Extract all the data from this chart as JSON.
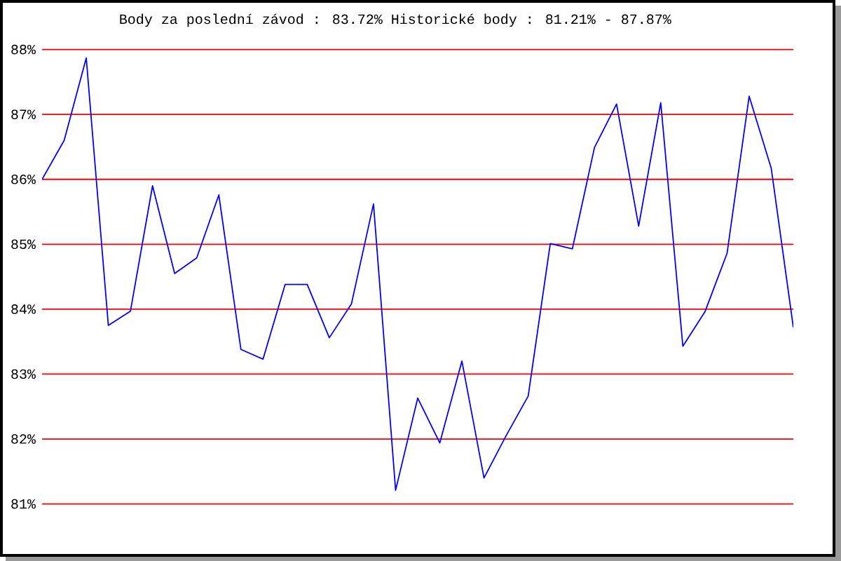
{
  "chart_data": {
    "type": "line",
    "title": "Body za poslední závod : 83.72% Historické body : 81.21% - 87.87%",
    "categories": [
      null,
      null,
      null,
      null,
      null,
      null,
      null,
      null,
      null,
      null,
      null,
      null,
      null,
      null,
      null,
      null,
      null,
      null,
      null,
      null,
      null,
      null,
      null,
      null,
      null,
      null,
      null,
      null,
      null,
      null,
      null,
      null,
      null,
      null,
      null
    ],
    "values": [
      86.0,
      86.6,
      87.87,
      83.75,
      83.97,
      85.9,
      84.55,
      84.79,
      85.76,
      83.38,
      83.23,
      84.38,
      84.38,
      83.56,
      84.08,
      85.62,
      81.21,
      82.63,
      81.94,
      83.2,
      81.4,
      82.05,
      82.66,
      85.01,
      84.93,
      86.49,
      87.16,
      85.28,
      87.18,
      83.43,
      83.96,
      84.86,
      87.28,
      86.17,
      83.72
    ],
    "color": "#0000ff",
    "ylim": [
      81,
      88
    ],
    "yticks": [
      {
        "value": 81,
        "label": "81%"
      },
      {
        "value": 82,
        "label": "82%"
      },
      {
        "value": 83,
        "label": "83%"
      },
      {
        "value": 84,
        "label": "84%"
      },
      {
        "value": 85,
        "label": "85%"
      },
      {
        "value": 86,
        "label": "86%"
      },
      {
        "value": 87,
        "label": "87%"
      },
      {
        "value": 88,
        "label": "88%"
      }
    ],
    "grid": "y",
    "tick_labels": "y"
  }
}
